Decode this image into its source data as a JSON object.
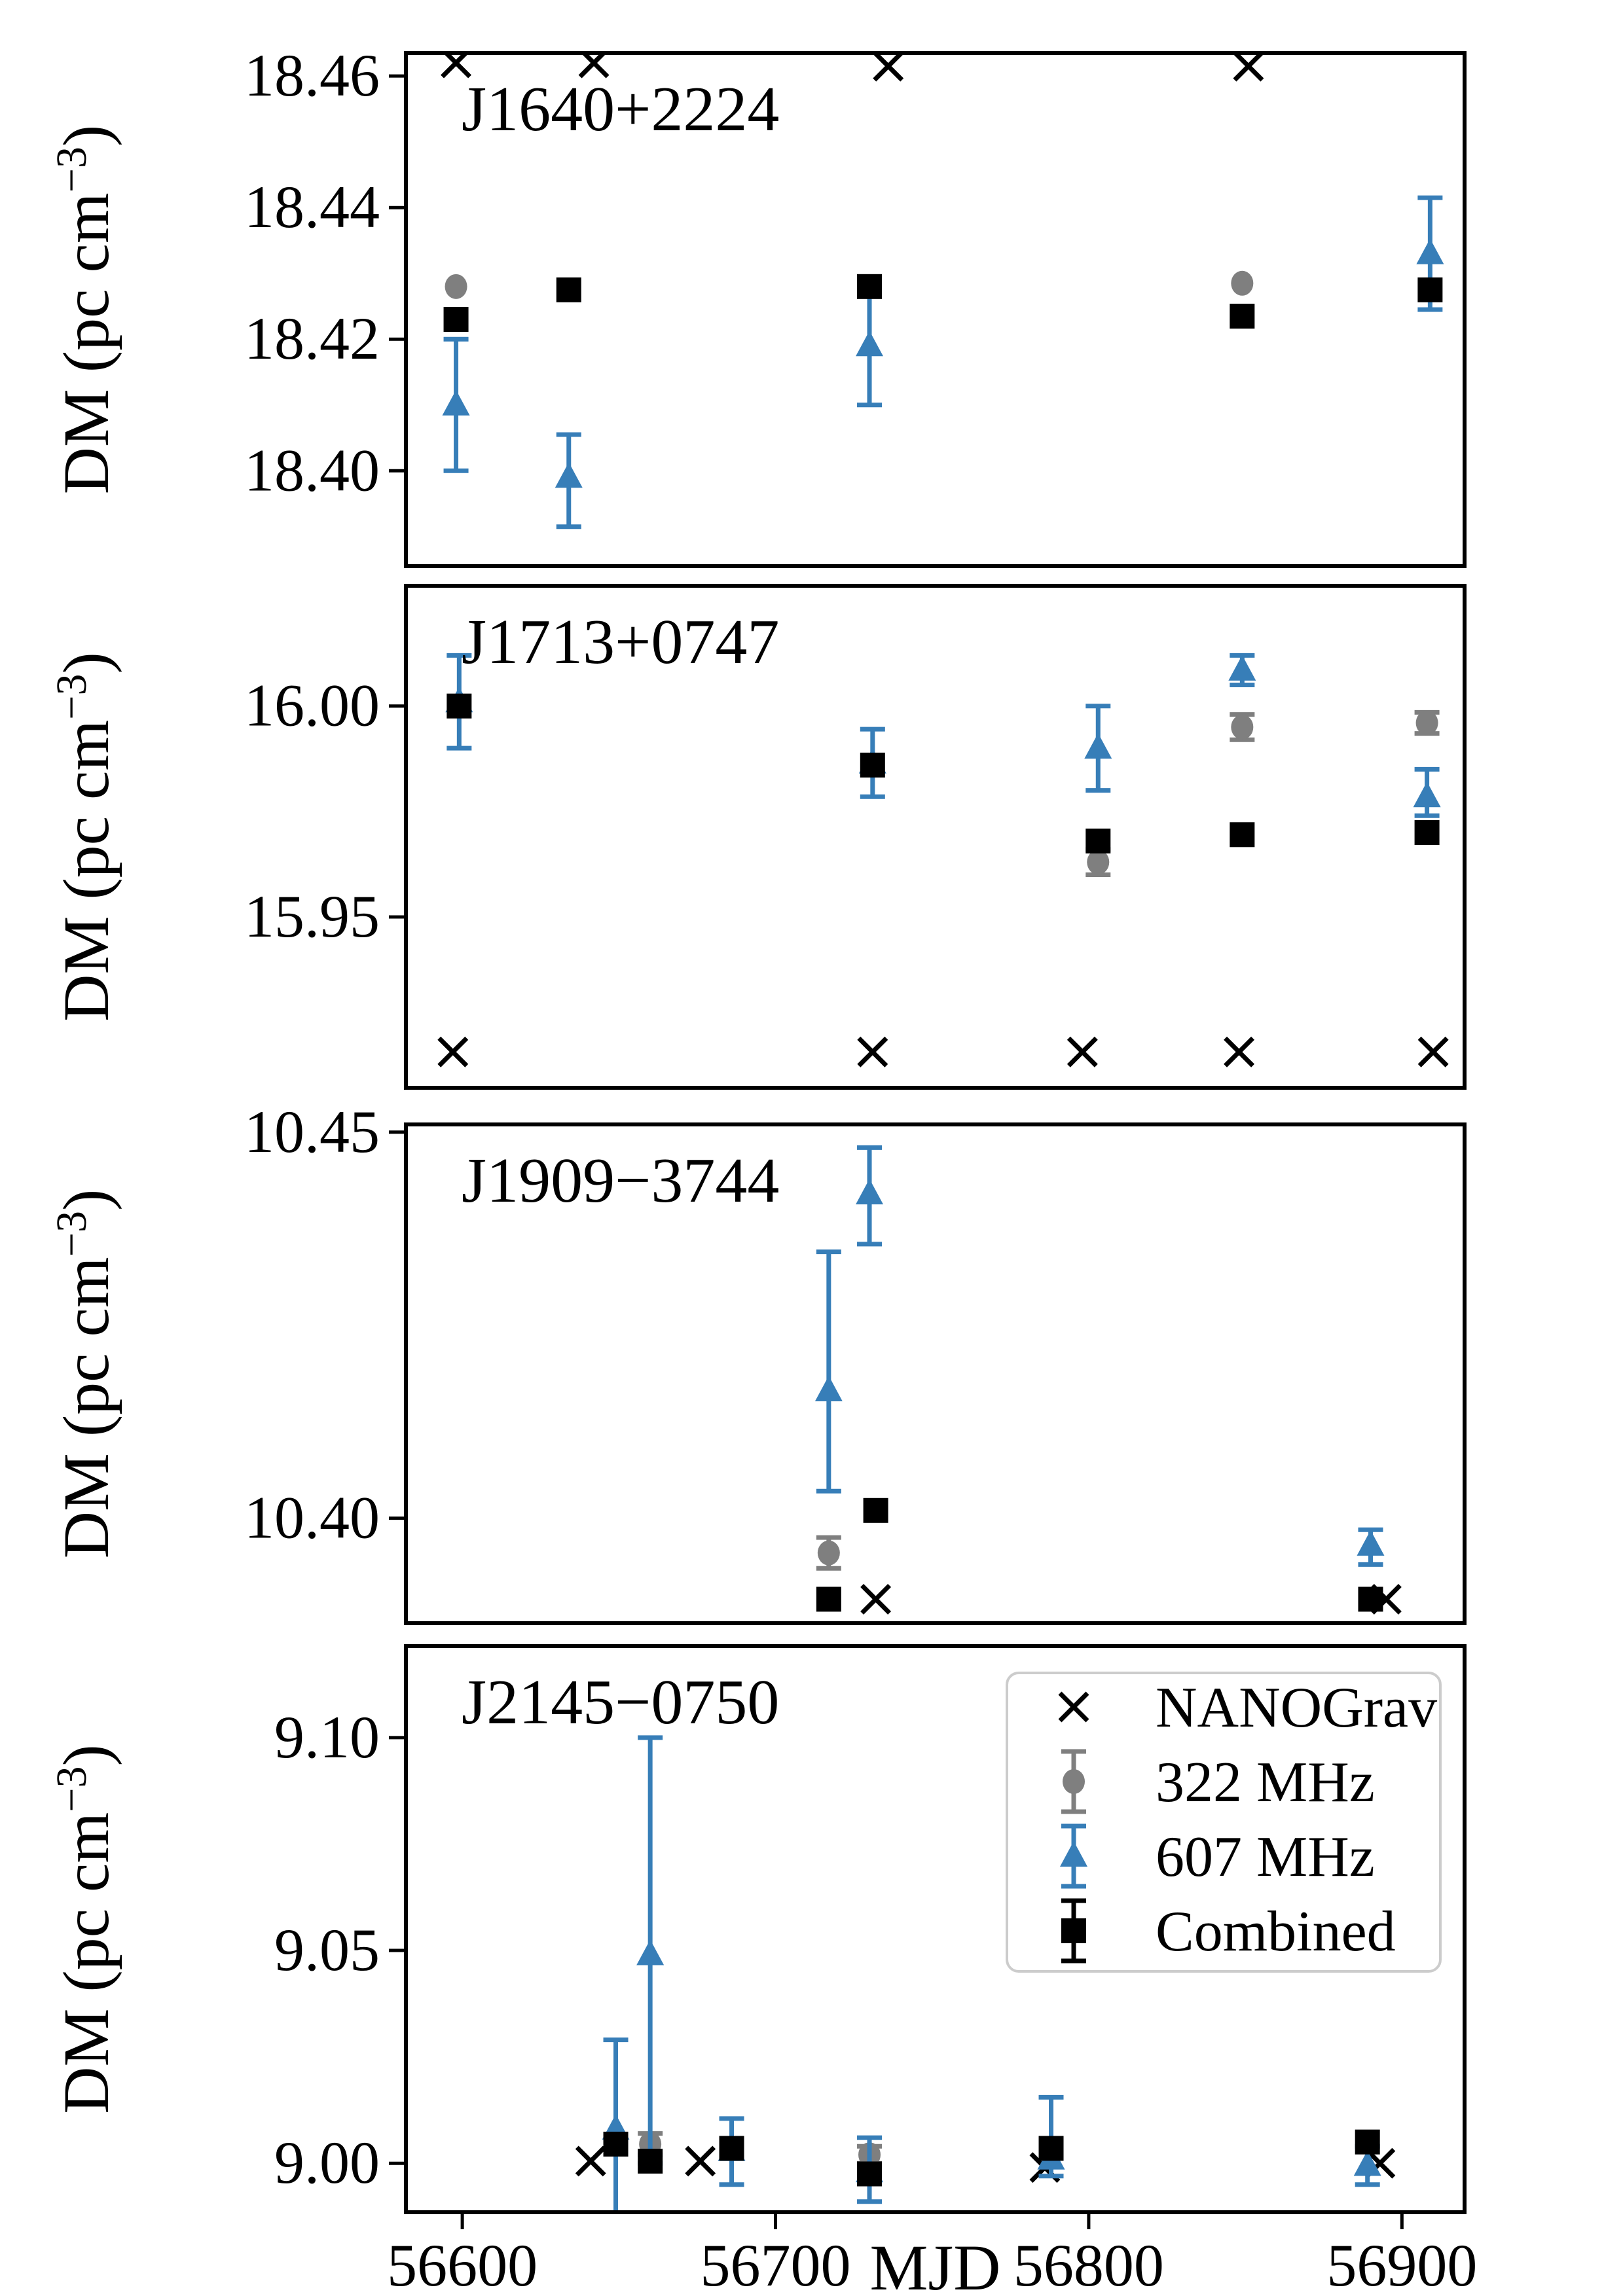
{
  "figure": {
    "x_axis": {
      "label": "MJD",
      "range": [
        56582,
        56920
      ],
      "ticks": [
        56600,
        56700,
        56800,
        56900
      ],
      "tick_labels": [
        "56600",
        "56700",
        "56800",
        "56900"
      ]
    },
    "y_axis_label": {
      "main": "DM (pc cm",
      "sup": "−3",
      "close": ")"
    },
    "colors": {
      "nanograv": "#000000",
      "f322": "#7f7f7f",
      "f607": "#377eb8",
      "combined": "#000000",
      "legend_border": "#cccccc"
    },
    "legend": {
      "position": "panel-4-upper-right",
      "items": [
        {
          "key": "nanograv",
          "marker": "x-marker",
          "label": "NANOGrav"
        },
        {
          "key": "f322",
          "marker": "circle-marker",
          "label": "322 MHz"
        },
        {
          "key": "f607",
          "marker": "triangle-marker",
          "label": "607 MHz"
        },
        {
          "key": "combined",
          "marker": "square-marker",
          "label": "Combined"
        }
      ]
    },
    "chart_data": [
      {
        "type": "scatter",
        "title": "J1640+2224",
        "ylabel": "DM (pc cm^-3)",
        "ylim": [
          18.3855,
          18.4635
        ],
        "yticks": [
          18.4,
          18.42,
          18.44,
          18.46
        ],
        "ytick_labels": [
          "18.40",
          "18.42",
          "18.44",
          "18.46"
        ],
        "series": [
          {
            "name": "NANOGrav",
            "key": "nanograv",
            "points": [
              [
                56598,
                18.462
              ],
              [
                56642,
                18.462
              ],
              [
                56736,
                18.4615
              ],
              [
                56851,
                18.4615
              ]
            ]
          },
          {
            "name": "322 MHz",
            "key": "f322",
            "points": [
              [
                56598,
                18.428
              ],
              [
                56849,
                18.4285
              ]
            ]
          },
          {
            "name": "607 MHz",
            "key": "f607",
            "points": [
              [
                56598,
                18.41,
                18.4,
                18.42
              ],
              [
                56634,
                18.399,
                18.3915,
                18.4055
              ],
              [
                56730,
                18.419,
                18.41,
                18.429
              ],
              [
                56909,
                18.433,
                18.4245,
                18.4415
              ]
            ]
          },
          {
            "name": "Combined",
            "key": "combined",
            "points": [
              [
                56598,
                18.423
              ],
              [
                56634,
                18.4275
              ],
              [
                56730,
                18.428
              ],
              [
                56849,
                18.4235
              ],
              [
                56909,
                18.4275
              ]
            ]
          }
        ]
      },
      {
        "type": "scatter",
        "title": "J1713+0747",
        "ylabel": "DM (pc cm^-3)",
        "ylim": [
          15.9095,
          16.0285
        ],
        "yticks": [
          15.95,
          16.0
        ],
        "ytick_labels": [
          "15.95",
          "16.00"
        ],
        "series": [
          {
            "name": "NANOGrav",
            "key": "nanograv",
            "points": [
              [
                56597,
                15.918
              ],
              [
                56731,
                15.918
              ],
              [
                56798,
                15.918
              ],
              [
                56848,
                15.918
              ],
              [
                56910,
                15.918
              ]
            ]
          },
          {
            "name": "322 MHz",
            "key": "f322",
            "points": [
              [
                56803,
                15.963,
                15.96,
                15.966
              ],
              [
                56849,
                15.995,
                15.992,
                15.998
              ],
              [
                56908,
                15.996,
                15.9935,
                15.9985
              ]
            ]
          },
          {
            "name": "607 MHz",
            "key": "f607",
            "points": [
              [
                56599,
                16.001,
                15.99,
                16.012
              ],
              [
                56731,
                15.9865,
                15.9785,
                15.9945
              ],
              [
                56803,
                15.99,
                15.98,
                16.0
              ],
              [
                56849,
                16.0085,
                16.005,
                16.012
              ],
              [
                56908,
                15.9785,
                15.974,
                15.985
              ]
            ]
          },
          {
            "name": "Combined",
            "key": "combined",
            "points": [
              [
                56599,
                16.0
              ],
              [
                56731,
                15.986
              ],
              [
                56803,
                15.968
              ],
              [
                56849,
                15.9695
              ],
              [
                56908,
                15.97
              ]
            ]
          }
        ]
      },
      {
        "type": "scatter",
        "title": "J1909−3744",
        "ylabel": "DM (pc cm^-3)",
        "ylim": [
          10.3864,
          10.451
        ],
        "yticks": [
          10.4,
          10.45
        ],
        "ytick_labels": [
          "10.40",
          "10.45"
        ],
        "series": [
          {
            "name": "NANOGrav",
            "key": "nanograv",
            "points": [
              [
                56732,
                10.3895
              ],
              [
                56895,
                10.3895
              ]
            ]
          },
          {
            "name": "322 MHz",
            "key": "f322",
            "points": [
              [
                56717,
                10.3955,
                10.3935,
                10.3975
              ]
            ]
          },
          {
            "name": "607 MHz",
            "key": "f607",
            "points": [
              [
                56717,
                10.4165,
                10.4035,
                10.4345
              ],
              [
                56730,
                10.442,
                10.4355,
                10.448
              ],
              [
                56890,
                10.3965,
                10.394,
                10.3985
              ]
            ]
          },
          {
            "name": "Combined",
            "key": "combined",
            "points": [
              [
                56717,
                10.3895
              ],
              [
                56732,
                10.401
              ],
              [
                56890,
                10.3895
              ]
            ]
          }
        ]
      },
      {
        "type": "scatter",
        "title": "J2145−0750",
        "ylabel": "DM (pc cm^-3)",
        "ylim": [
          8.9885,
          9.1215
        ],
        "yticks": [
          9.0,
          9.05,
          9.1
        ],
        "ytick_labels": [
          "9.00",
          "9.05",
          "9.10"
        ],
        "series": [
          {
            "name": "NANOGrav",
            "key": "nanograv",
            "points": [
              [
                56641,
                9.0005
              ],
              [
                56676,
                9.0005
              ],
              [
                56786,
                8.999
              ],
              [
                56893,
                9.0
              ]
            ]
          },
          {
            "name": "322 MHz",
            "key": "f322",
            "points": [
              [
                56660,
                9.0045,
                9.002,
                9.007
              ],
              [
                56730,
                9.002,
                9.0,
                9.004
              ]
            ]
          },
          {
            "name": "607 MHz",
            "key": "f607",
            "points": [
              [
                56649,
                9.008,
                8.9875,
                9.029
              ],
              [
                56660,
                9.049,
                9.0,
                9.1
              ],
              [
                56686,
                9.003,
                8.995,
                9.0105
              ],
              [
                56730,
                8.998,
                8.991,
                9.006
              ],
              [
                56788,
                9.001,
                8.997,
                9.0155
              ],
              [
                56889,
                8.9995,
                8.995,
                9.004
              ]
            ]
          },
          {
            "name": "Combined",
            "key": "combined",
            "points": [
              [
                56649,
                9.0045
              ],
              [
                56660,
                9.0005
              ],
              [
                56686,
                9.0035
              ],
              [
                56730,
                8.9975
              ],
              [
                56788,
                9.0035
              ],
              [
                56889,
                9.005
              ]
            ]
          }
        ]
      }
    ]
  }
}
